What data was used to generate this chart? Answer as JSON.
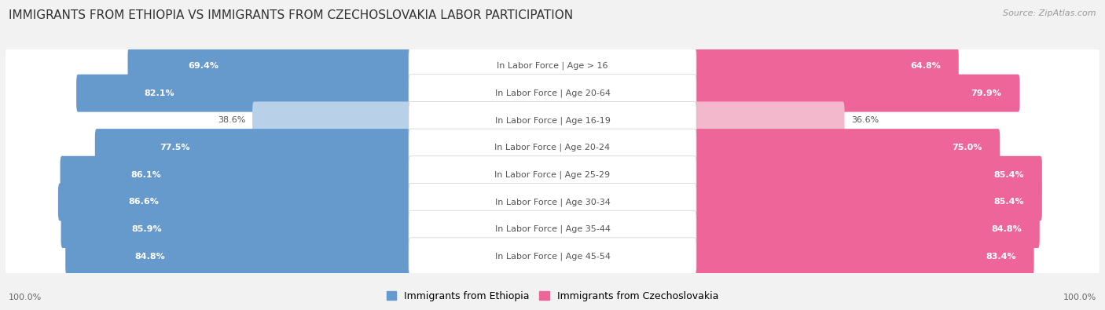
{
  "title": "IMMIGRANTS FROM ETHIOPIA VS IMMIGRANTS FROM CZECHOSLOVAKIA LABOR PARTICIPATION",
  "source": "Source: ZipAtlas.com",
  "categories": [
    "In Labor Force | Age > 16",
    "In Labor Force | Age 20-64",
    "In Labor Force | Age 16-19",
    "In Labor Force | Age 20-24",
    "In Labor Force | Age 25-29",
    "In Labor Force | Age 30-34",
    "In Labor Force | Age 35-44",
    "In Labor Force | Age 45-54"
  ],
  "ethiopia_values": [
    69.4,
    82.1,
    38.6,
    77.5,
    86.1,
    86.6,
    85.9,
    84.8
  ],
  "czechoslovakia_values": [
    64.8,
    79.9,
    36.6,
    75.0,
    85.4,
    85.4,
    84.8,
    83.4
  ],
  "ethiopia_color": "#6699cc",
  "ethiopia_color_light": "#b8d0e8",
  "czechoslovakia_color": "#ee6699",
  "czechoslovakia_color_light": "#f4b8cc",
  "row_bg_color": "#e8e8e8",
  "background_color": "#f2f2f2",
  "title_fontsize": 11,
  "label_fontsize": 8.0,
  "value_fontsize": 8.0,
  "legend_fontsize": 9,
  "bottom_labels": [
    "100.0%",
    "100.0%"
  ]
}
